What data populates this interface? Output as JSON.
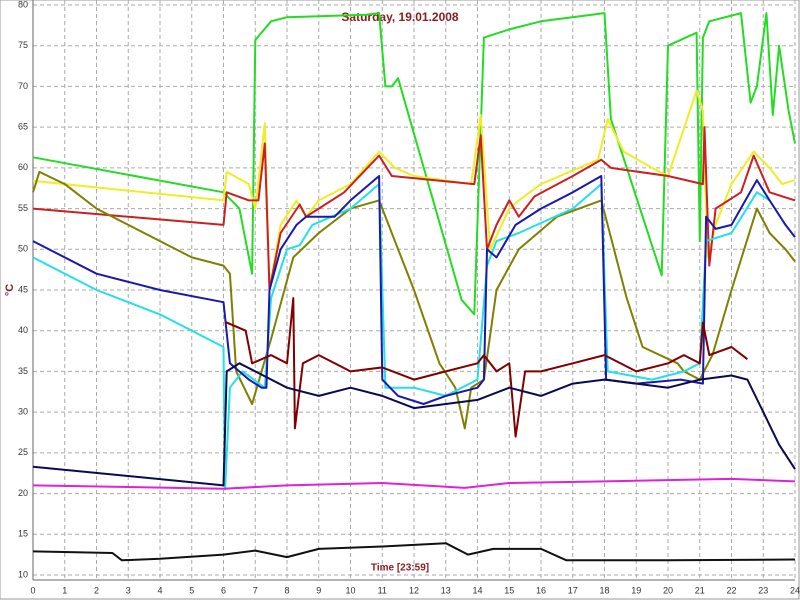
{
  "chart_data": {
    "type": "line",
    "title": "Saturday, 19.01.2008",
    "x_label": "Time [23:59]",
    "y_label": "°C",
    "xlim": [
      0,
      24
    ],
    "xticks": [
      0,
      1,
      2,
      3,
      4,
      5,
      6,
      7,
      8,
      9,
      10,
      11,
      12,
      13,
      14,
      15,
      16,
      17,
      18,
      19,
      20,
      21,
      22,
      23,
      24
    ],
    "ylim": [
      10,
      80
    ],
    "yticks": [
      10,
      15,
      20,
      25,
      30,
      35,
      40,
      45,
      50,
      55,
      60,
      65,
      70,
      75,
      80
    ],
    "grid": true,
    "series": [
      {
        "color": "#22dd22",
        "x": [
          0,
          6,
          6.5,
          6.9,
          7.0,
          7.5,
          8,
          10.5,
          10.9,
          11.1,
          11.3,
          11.5,
          13.5,
          13.9,
          14.2,
          15,
          16,
          18,
          18.2,
          19.8,
          20,
          20.9,
          21,
          21.1,
          21.3,
          22.3,
          22.6,
          22.8,
          23.1,
          23.3,
          23.5,
          23.8,
          24
        ],
        "values": [
          61.3,
          57,
          55,
          47,
          75.7,
          78,
          78.5,
          78.8,
          79,
          70,
          70,
          71,
          43.8,
          42,
          76,
          77,
          78,
          79,
          66,
          46.8,
          75,
          76.6,
          51,
          76,
          78,
          79,
          68,
          70,
          79,
          66.5,
          75,
          67,
          63
        ]
      },
      {
        "color": "#eeee22",
        "x": [
          0,
          6,
          6.1,
          6.8,
          7.0,
          7.3,
          7.45,
          7.8,
          8.3,
          8.6,
          9,
          10,
          10.9,
          11.4,
          12,
          13.8,
          14.1,
          14.4,
          15,
          15.3,
          16,
          17.8,
          18.1,
          18.6,
          19.5,
          20,
          20.6,
          20.9,
          21.1,
          21.25,
          21.5,
          22,
          22.7,
          23.2,
          23.6,
          24
        ],
        "values": [
          58.4,
          56,
          59.5,
          58,
          55,
          65.5,
          45,
          53,
          56,
          54,
          56,
          58,
          62,
          60,
          59,
          58,
          66.5,
          50,
          55,
          56,
          58,
          61,
          66,
          62,
          60,
          59,
          66,
          69.5,
          67,
          49,
          53,
          58,
          62,
          60,
          58,
          58.5
        ]
      },
      {
        "color": "#cc2020",
        "x": [
          0,
          6,
          6.1,
          6.8,
          7.1,
          7.3,
          7.45,
          7.8,
          8.4,
          8.6,
          9,
          9.8,
          10.9,
          11.3,
          13.9,
          14.1,
          14.3,
          14.6,
          15,
          15.3,
          15.8,
          17,
          17.9,
          18.2,
          20,
          21.1,
          21.15,
          21.3,
          21.5,
          22.3,
          22.7,
          23.2,
          24
        ],
        "values": [
          55,
          53,
          57,
          56,
          56,
          63,
          45,
          52,
          55.5,
          54,
          55,
          57,
          61.5,
          59,
          58,
          64,
          50,
          53,
          56,
          54,
          56.5,
          59,
          61,
          60,
          59,
          58,
          65,
          48,
          55,
          57,
          61.5,
          57,
          56
        ]
      },
      {
        "color": "#808000",
        "x": [
          0,
          0.2,
          1,
          2,
          3,
          4,
          5,
          6,
          6.2,
          6.4,
          6.9,
          7.2,
          7.5,
          8.2,
          9,
          10,
          10.9,
          11.5,
          12,
          12.8,
          13.3,
          13.6,
          13.8,
          14.2,
          14.6,
          15.3,
          16.5,
          17.9,
          18.3,
          18.7,
          19.2,
          20.3,
          20.5,
          21,
          21.4,
          22,
          22.8,
          23.2,
          23.7,
          24
        ],
        "values": [
          57,
          59.5,
          58,
          55,
          53,
          51,
          49,
          48,
          47,
          35,
          31,
          35,
          39,
          49,
          52,
          55,
          56,
          50,
          45,
          36,
          33,
          28,
          33,
          34,
          45,
          50,
          54,
          56,
          50,
          44,
          38,
          36,
          35,
          34,
          37,
          45,
          55,
          52,
          50,
          48.5
        ]
      },
      {
        "color": "#22e0e8",
        "x": [
          0,
          2,
          4,
          6,
          6.05,
          6.2,
          6.6,
          7.3,
          7.5,
          8,
          8.4,
          8.8,
          10,
          10.9,
          11.1,
          12,
          13,
          14,
          14.3,
          14.6,
          15.3,
          17,
          17.9,
          18.1,
          19.5,
          20.5,
          21,
          21.2,
          22,
          22.8,
          23.2
        ],
        "values": [
          49,
          45,
          42,
          38,
          20.5,
          33,
          35,
          33,
          44,
          50,
          50.5,
          53,
          55,
          58,
          33,
          33,
          32,
          34,
          48,
          51,
          52,
          55,
          58,
          35,
          34,
          35,
          36,
          51,
          52,
          57,
          56
        ]
      },
      {
        "color": "#1a1aaa",
        "x": [
          0,
          2,
          4,
          6,
          6.2,
          6.8,
          7.2,
          7.35,
          7.45,
          7.8,
          8.3,
          8.6,
          9.5,
          10,
          10.9,
          11,
          11.5,
          12.3,
          13,
          14,
          14.2,
          14.3,
          14.6,
          15.2,
          16,
          17,
          17.9,
          18.05,
          19,
          20.4,
          21.1,
          21.2,
          21.5,
          22,
          22.8,
          23.2,
          23.7,
          24
        ],
        "values": [
          51,
          47,
          45,
          43.5,
          36,
          34,
          33,
          33,
          45,
          50,
          53,
          54,
          54,
          56,
          59,
          34,
          32,
          31,
          32,
          33,
          34,
          50,
          49,
          53,
          55,
          57,
          59,
          34,
          33.5,
          34,
          33.5,
          54,
          52.5,
          53,
          58.5,
          56,
          53,
          51.5
        ]
      },
      {
        "color": "#800000",
        "x": [
          6.05,
          6.1,
          6.7,
          6.9,
          7.5,
          8,
          8.2,
          8.25,
          8.5,
          9,
          10,
          11,
          12,
          13,
          14,
          14.2,
          14.6,
          15,
          15.2,
          15.5,
          16,
          17,
          18,
          19,
          20,
          20.5,
          21,
          21.1,
          21.3,
          22,
          22.5
        ],
        "values": [
          41,
          41,
          40,
          36,
          37,
          36,
          44,
          28,
          36,
          37,
          35,
          35.5,
          34,
          35,
          36,
          37,
          35,
          36,
          27,
          35,
          35,
          36,
          37,
          35,
          36,
          37,
          36,
          41,
          37,
          38,
          36.5
        ]
      },
      {
        "color": "#0a0a50",
        "x": [
          0,
          6,
          6.1,
          6.5,
          7,
          8,
          9,
          10,
          11,
          12,
          13,
          14,
          15,
          16,
          17,
          18,
          19,
          20,
          21,
          22,
          22.5,
          23,
          23.5,
          24
        ],
        "values": [
          23.3,
          21,
          35,
          36,
          35,
          33,
          32,
          33,
          32,
          30.5,
          31,
          31.5,
          33,
          32,
          33.5,
          34,
          33.5,
          33,
          34,
          34.5,
          34,
          30,
          26,
          23
        ]
      },
      {
        "color": "#dd22dd",
        "x": [
          0,
          6,
          8,
          11,
          13.6,
          15,
          18,
          22,
          24
        ],
        "values": [
          21,
          20.6,
          21,
          21.3,
          20.7,
          21.3,
          21.5,
          21.8,
          21.5
        ]
      },
      {
        "color": "#111111",
        "x": [
          0,
          2.5,
          2.8,
          4,
          6,
          7,
          8,
          9,
          11,
          13,
          13.7,
          14.5,
          16,
          16.8,
          20,
          24
        ],
        "values": [
          12.9,
          12.7,
          11.8,
          12,
          12.5,
          13,
          12.2,
          13.2,
          13.5,
          13.9,
          12.5,
          13.2,
          13.2,
          11.8,
          11.8,
          11.9
        ]
      }
    ]
  }
}
